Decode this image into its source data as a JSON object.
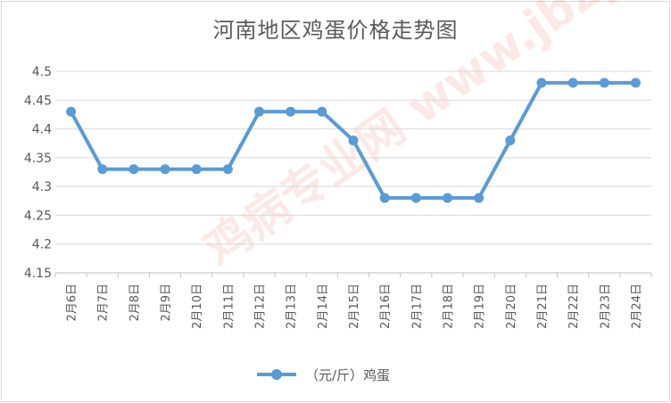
{
  "chart_data": {
    "type": "line",
    "title": "河南地区鸡蛋价格走势图",
    "xlabel": "",
    "ylabel": "",
    "categories": [
      "2月6日",
      "2月7日",
      "2月8日",
      "2月9日",
      "2月10日",
      "2月11日",
      "2月12日",
      "2月13日",
      "2月14日",
      "2月15日",
      "2月16日",
      "2月17日",
      "2月18日",
      "2月19日",
      "2月20日",
      "2月21日",
      "2月22日",
      "2月23日",
      "2月24日"
    ],
    "series": [
      {
        "name": "（元/斤）鸡蛋",
        "values": [
          4.43,
          4.33,
          4.33,
          4.33,
          4.33,
          4.33,
          4.43,
          4.43,
          4.43,
          4.38,
          4.28,
          4.28,
          4.28,
          4.28,
          4.38,
          4.48,
          4.48,
          4.48,
          4.48
        ],
        "color": "#5b9bd5"
      }
    ],
    "yticks": [
      "4.15",
      "4.2",
      "4.25",
      "4.3",
      "4.35",
      "4.4",
      "4.45",
      "4.5"
    ],
    "ylim": [
      4.15,
      4.5
    ],
    "grid": true,
    "legend": "bottom",
    "watermark": "鸡病专业网 www.jbzyw.com"
  }
}
